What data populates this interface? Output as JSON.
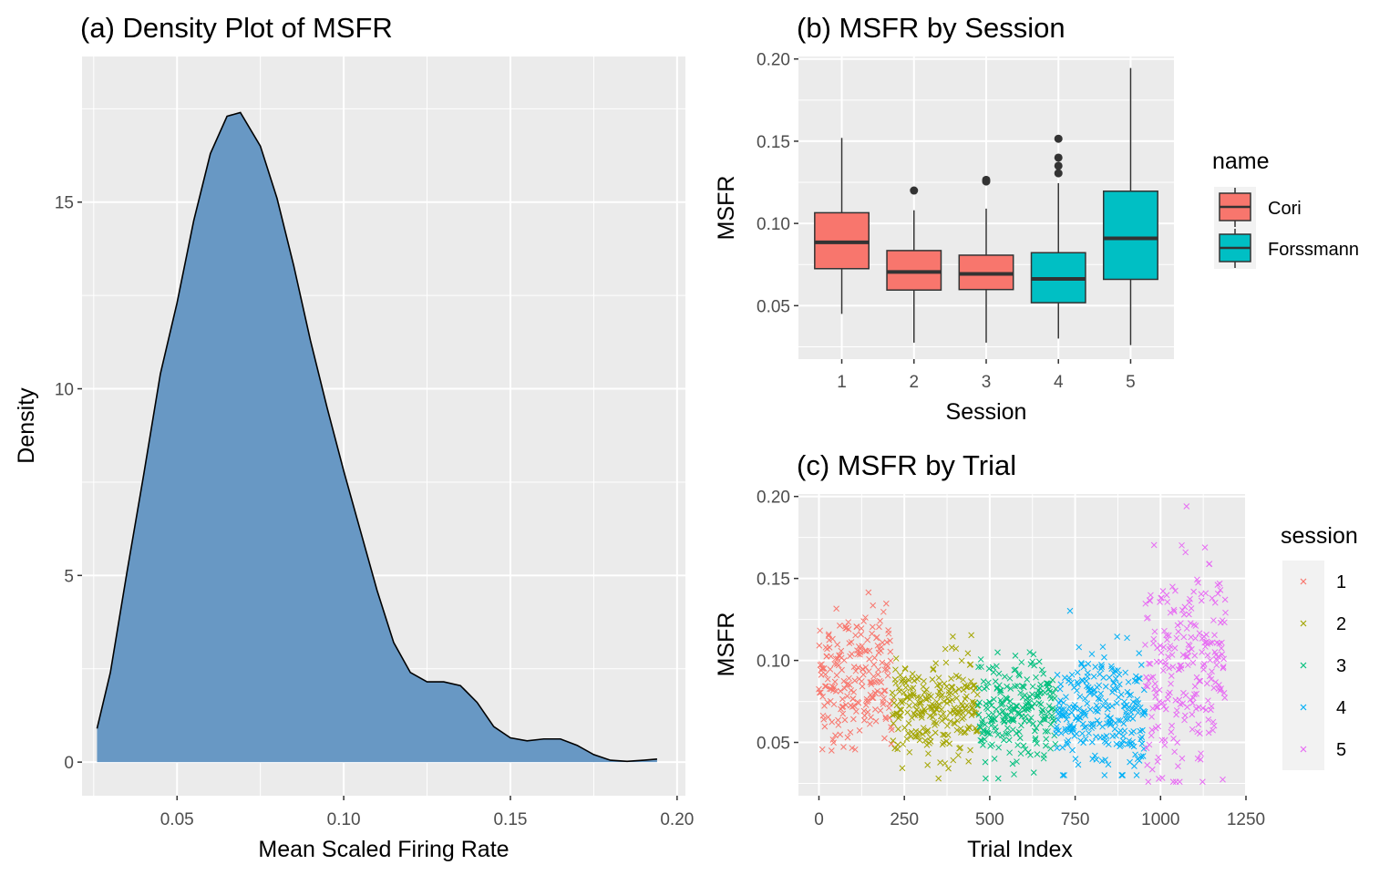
{
  "chart_data": [
    {
      "type": "area",
      "title": "(a) Density Plot of MSFR",
      "xlabel": "Mean Scaled Firing Rate",
      "ylabel": "Density",
      "xlim": [
        0.0215,
        0.2025
      ],
      "ylim": [
        -0.9,
        18.9
      ],
      "x_ticks": [
        "0.05",
        "0.10",
        "0.15",
        "0.20"
      ],
      "y_ticks": [
        "0",
        "5",
        "10",
        "15"
      ],
      "fill_color": "#6898c4",
      "x": [
        0.026,
        0.03,
        0.035,
        0.04,
        0.045,
        0.05,
        0.055,
        0.06,
        0.065,
        0.069,
        0.075,
        0.08,
        0.085,
        0.09,
        0.095,
        0.1,
        0.105,
        0.11,
        0.115,
        0.12,
        0.125,
        0.13,
        0.135,
        0.14,
        0.145,
        0.15,
        0.155,
        0.16,
        0.165,
        0.17,
        0.175,
        0.18,
        0.185,
        0.19,
        0.194
      ],
      "y": [
        0.9,
        2.4,
        5.1,
        7.7,
        10.4,
        12.3,
        14.5,
        16.3,
        17.3,
        17.4,
        16.5,
        15.1,
        13.3,
        11.3,
        9.5,
        7.8,
        6.2,
        4.6,
        3.2,
        2.4,
        2.15,
        2.15,
        2.05,
        1.6,
        0.95,
        0.65,
        0.57,
        0.62,
        0.62,
        0.45,
        0.2,
        0.05,
        0.02,
        0.05,
        0.08
      ],
      "grid": true
    },
    {
      "type": "box",
      "title": "(b) MSFR by Session",
      "xlabel": "Session",
      "ylabel": "MSFR",
      "ylim": [
        0.0175,
        0.2015
      ],
      "y_ticks": [
        "0.05",
        "0.10",
        "0.15",
        "0.20"
      ],
      "categories": [
        "1",
        "2",
        "3",
        "4",
        "5"
      ],
      "boxes": [
        {
          "session": "1",
          "group": "Cori",
          "lower": 0.045,
          "q1": 0.0725,
          "median": 0.0885,
          "q3": 0.1065,
          "upper": 0.152,
          "outliers": []
        },
        {
          "session": "2",
          "group": "Cori",
          "lower": 0.0275,
          "q1": 0.0595,
          "median": 0.0705,
          "q3": 0.0835,
          "upper": 0.108,
          "outliers": [
            0.12
          ]
        },
        {
          "session": "3",
          "group": "Cori",
          "lower": 0.0275,
          "q1": 0.0598,
          "median": 0.0693,
          "q3": 0.0807,
          "upper": 0.109,
          "outliers": [
            0.1255,
            0.1265
          ]
        },
        {
          "session": "4",
          "group": "Forssmann",
          "lower": 0.03,
          "q1": 0.0518,
          "median": 0.0663,
          "q3": 0.0822,
          "upper": 0.1245,
          "outliers": [
            0.1305,
            0.135,
            0.14,
            0.1515
          ]
        },
        {
          "session": "5",
          "group": "Forssmann",
          "lower": 0.026,
          "q1": 0.066,
          "median": 0.0909,
          "q3": 0.1196,
          "upper": 0.1945,
          "outliers": []
        }
      ],
      "legend": {
        "title": "name",
        "placement": "right",
        "items": [
          {
            "label": "Cori",
            "color": "#f8766d"
          },
          {
            "label": "Forssmann",
            "color": "#00bfc4"
          }
        ]
      },
      "grid": true
    },
    {
      "type": "scatter",
      "title": "(c) MSFR by Trial",
      "xlabel": "Trial Index",
      "ylabel": "MSFR",
      "xlim": [
        -60,
        1250
      ],
      "ylim": [
        0.0175,
        0.2015
      ],
      "x_ticks": [
        "0",
        "250",
        "500",
        "750",
        "1000",
        "1250"
      ],
      "y_ticks": [
        "0.05",
        "0.10",
        "0.15",
        "0.20"
      ],
      "marker": "x",
      "legend": {
        "title": "session",
        "placement": "right",
        "items": [
          {
            "label": "1",
            "color": "#f8766d"
          },
          {
            "label": "2",
            "color": "#a3a500"
          },
          {
            "label": "3",
            "color": "#00bf7d"
          },
          {
            "label": "4",
            "color": "#00b0f6"
          },
          {
            "label": "5",
            "color": "#e76bf3"
          }
        ]
      },
      "series": [
        {
          "name": "1",
          "trials": [
            0,
            214
          ],
          "mean": 0.089,
          "sd": 0.021,
          "min": 0.045,
          "max": 0.152
        },
        {
          "name": "2",
          "trials": [
            215,
            465
          ],
          "mean": 0.071,
          "sd": 0.016,
          "min": 0.028,
          "max": 0.12
        },
        {
          "name": "3",
          "trials": [
            466,
            693
          ],
          "mean": 0.07,
          "sd": 0.015,
          "min": 0.028,
          "max": 0.127
        },
        {
          "name": "4",
          "trials": [
            694,
            954
          ],
          "mean": 0.068,
          "sd": 0.019,
          "min": 0.03,
          "max": 0.152
        },
        {
          "name": "5",
          "trials": [
            955,
            1190
          ],
          "mean": 0.094,
          "sd": 0.032,
          "min": 0.026,
          "max": 0.194
        }
      ],
      "grid": true
    }
  ]
}
